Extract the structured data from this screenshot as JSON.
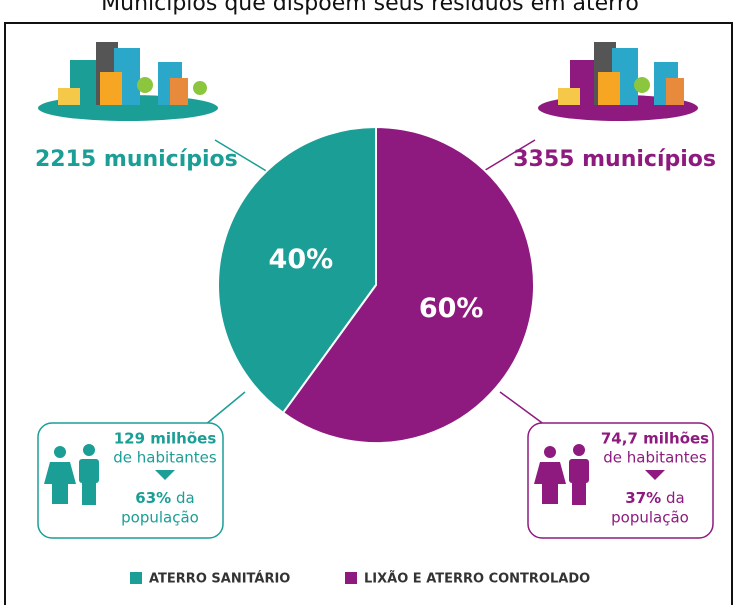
{
  "chart_data": {
    "type": "pie",
    "title": "Municípios que dispõem seus resíduos em aterro",
    "categories": [
      "ATERRO SANITÁRIO",
      "LIXÃO E ATERRO CONTROLADO"
    ],
    "values": [
      40,
      60
    ],
    "value_labels": [
      "40%",
      "60%"
    ],
    "colors": [
      "#1a9e96",
      "#8e1a7f"
    ],
    "annotations": [
      {
        "municipios": "2215 municípios",
        "habitantes": "129 milhões",
        "habitantes_suffix": "de habitantes",
        "share": "63%",
        "share_suffix": "da",
        "population": "população"
      },
      {
        "municipios": "3355 municípios",
        "habitantes": "74,7 milhões",
        "habitantes_suffix": "de habitantes",
        "share": "37%",
        "share_suffix": "da",
        "population": "população"
      }
    ]
  }
}
